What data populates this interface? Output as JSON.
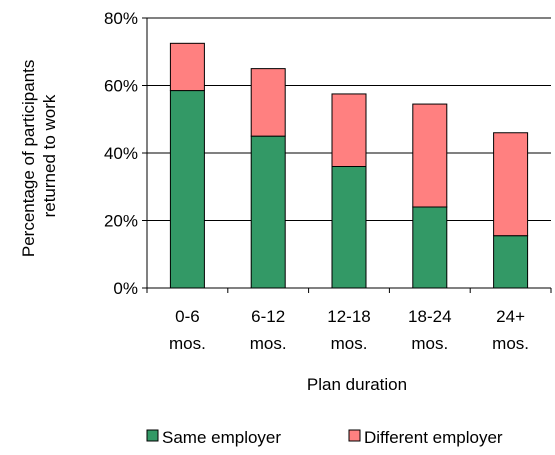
{
  "chart_data": {
    "type": "bar",
    "stacked": true,
    "categories": [
      [
        "0-6",
        "mos."
      ],
      [
        "6-12",
        "mos."
      ],
      [
        "12-18",
        "mos."
      ],
      [
        "18-24",
        "mos."
      ],
      [
        "24+",
        "mos."
      ]
    ],
    "series": [
      {
        "name": "Same employer",
        "color": "#339966",
        "values": [
          58.5,
          45,
          36,
          24,
          15.5
        ]
      },
      {
        "name": "Different employer",
        "color": "#ff8080",
        "values": [
          14,
          20,
          21.5,
          30.5,
          30.5
        ]
      }
    ],
    "xlabel": "Plan duration",
    "ylabel_lines": [
      "Percentage of participants",
      "returned to work"
    ],
    "ylim": [
      0,
      80
    ],
    "yticks": [
      {
        "value": 0,
        "label": "0%"
      },
      {
        "value": 20,
        "label": "20%"
      },
      {
        "value": 40,
        "label": "40%"
      },
      {
        "value": 60,
        "label": "60%"
      },
      {
        "value": 80,
        "label": "80%"
      }
    ],
    "grid": true,
    "legend_position": "bottom"
  }
}
